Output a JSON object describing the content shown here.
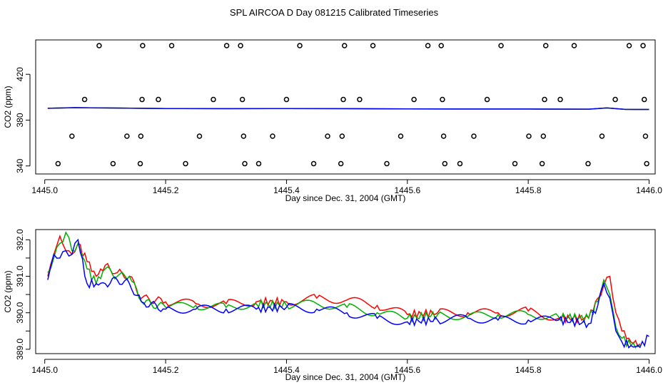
{
  "title": "SPL AIRCOA D  Day 081215  Calibrated Timeseries",
  "chart_data": [
    {
      "type": "scatter+line",
      "title": "",
      "xlabel": "Day since Dec. 31, 2004 (GMT)",
      "ylabel": "CO2 (ppm)",
      "xlim": [
        1444.985,
        1446.01
      ],
      "ylim": [
        333,
        450
      ],
      "xticks": [
        1445.0,
        1445.2,
        1445.4,
        1445.6,
        1445.8,
        1446.0
      ],
      "xtick_labels": [
        "1445.0",
        "1445.2",
        "1445.4",
        "1445.6",
        "1445.8",
        "1446.0"
      ],
      "yticks": [
        340,
        380,
        420
      ],
      "ytick_labels": [
        "340",
        "380",
        "420"
      ],
      "calibration_points": [
        {
          "x": 1445.022,
          "y": 342
        },
        {
          "x": 1445.045,
          "y": 366
        },
        {
          "x": 1445.066,
          "y": 398
        },
        {
          "x": 1445.09,
          "y": 445
        },
        {
          "x": 1445.113,
          "y": 342
        },
        {
          "x": 1445.136,
          "y": 366
        },
        {
          "x": 1445.158,
          "y": 342
        },
        {
          "x": 1445.159,
          "y": 366
        },
        {
          "x": 1445.161,
          "y": 398
        },
        {
          "x": 1445.162,
          "y": 445
        },
        {
          "x": 1445.188,
          "y": 398
        },
        {
          "x": 1445.21,
          "y": 445
        },
        {
          "x": 1445.233,
          "y": 342
        },
        {
          "x": 1445.256,
          "y": 366
        },
        {
          "x": 1445.279,
          "y": 398
        },
        {
          "x": 1445.301,
          "y": 445
        },
        {
          "x": 1445.324,
          "y": 445
        },
        {
          "x": 1445.327,
          "y": 398
        },
        {
          "x": 1445.329,
          "y": 366
        },
        {
          "x": 1445.331,
          "y": 342
        },
        {
          "x": 1445.354,
          "y": 342
        },
        {
          "x": 1445.377,
          "y": 366
        },
        {
          "x": 1445.4,
          "y": 398
        },
        {
          "x": 1445.422,
          "y": 445
        },
        {
          "x": 1445.445,
          "y": 342
        },
        {
          "x": 1445.468,
          "y": 366
        },
        {
          "x": 1445.49,
          "y": 342
        },
        {
          "x": 1445.492,
          "y": 366
        },
        {
          "x": 1445.494,
          "y": 398
        },
        {
          "x": 1445.496,
          "y": 445
        },
        {
          "x": 1445.521,
          "y": 398
        },
        {
          "x": 1445.543,
          "y": 445
        },
        {
          "x": 1445.566,
          "y": 342
        },
        {
          "x": 1445.589,
          "y": 366
        },
        {
          "x": 1445.611,
          "y": 398
        },
        {
          "x": 1445.634,
          "y": 445
        },
        {
          "x": 1445.656,
          "y": 445
        },
        {
          "x": 1445.658,
          "y": 398
        },
        {
          "x": 1445.66,
          "y": 366
        },
        {
          "x": 1445.662,
          "y": 342
        },
        {
          "x": 1445.687,
          "y": 342
        },
        {
          "x": 1445.71,
          "y": 366
        },
        {
          "x": 1445.732,
          "y": 398
        },
        {
          "x": 1445.755,
          "y": 445
        },
        {
          "x": 1445.778,
          "y": 342
        },
        {
          "x": 1445.801,
          "y": 366
        },
        {
          "x": 1445.823,
          "y": 342
        },
        {
          "x": 1445.825,
          "y": 366
        },
        {
          "x": 1445.827,
          "y": 398
        },
        {
          "x": 1445.829,
          "y": 445
        },
        {
          "x": 1445.853,
          "y": 398
        },
        {
          "x": 1445.876,
          "y": 445
        },
        {
          "x": 1445.899,
          "y": 342
        },
        {
          "x": 1445.922,
          "y": 366
        },
        {
          "x": 1445.944,
          "y": 398
        },
        {
          "x": 1445.967,
          "y": 445
        },
        {
          "x": 1445.99,
          "y": 445
        },
        {
          "x": 1445.992,
          "y": 398
        },
        {
          "x": 1445.994,
          "y": 366
        },
        {
          "x": 1445.996,
          "y": 342
        }
      ],
      "series": [
        {
          "name": "red",
          "color": "#ff0000",
          "x": [
            1445.005,
            1445.05,
            1445.1,
            1445.2,
            1445.3,
            1445.4,
            1445.5,
            1445.6,
            1445.7,
            1445.8,
            1445.9,
            1445.93,
            1445.96,
            1446.0
          ],
          "y": [
            390.3,
            390.9,
            390.6,
            390.1,
            390.0,
            390.1,
            390.0,
            389.8,
            389.7,
            389.7,
            389.6,
            390.6,
            389.4,
            389.3
          ]
        },
        {
          "name": "green",
          "color": "#00b000",
          "x": [
            1445.005,
            1445.05,
            1445.1,
            1445.2,
            1445.3,
            1445.4,
            1445.5,
            1445.6,
            1445.7,
            1445.8,
            1445.9,
            1445.93,
            1445.96,
            1446.0
          ],
          "y": [
            390.3,
            390.9,
            390.6,
            390.1,
            390.0,
            390.1,
            390.0,
            389.8,
            389.7,
            389.7,
            389.6,
            390.6,
            389.4,
            389.3
          ]
        },
        {
          "name": "blue",
          "color": "#0000ff",
          "x": [
            1445.005,
            1445.05,
            1445.1,
            1445.2,
            1445.3,
            1445.4,
            1445.5,
            1445.6,
            1445.7,
            1445.8,
            1445.9,
            1445.93,
            1445.96,
            1446.0
          ],
          "y": [
            390.3,
            390.9,
            390.6,
            390.1,
            390.0,
            390.1,
            390.0,
            389.8,
            389.7,
            389.7,
            389.6,
            390.6,
            389.4,
            389.3
          ]
        }
      ]
    },
    {
      "type": "line",
      "title": "",
      "xlabel": "Day since Dec. 31, 2004 (GMT)",
      "ylabel": "CO2 (ppm)",
      "xlim": [
        1444.985,
        1446.01
      ],
      "ylim": [
        388.88,
        392.28
      ],
      "xticks": [
        1445.0,
        1445.2,
        1445.4,
        1445.6,
        1445.8,
        1446.0
      ],
      "xtick_labels": [
        "1445.0",
        "1445.2",
        "1445.4",
        "1445.6",
        "1445.8",
        "1446.0"
      ],
      "yticks": [
        389.0,
        389.5,
        390.0,
        390.5,
        391.0,
        391.5,
        392.0
      ],
      "ytick_labels": [
        "389.0",
        "",
        "390.0",
        "",
        "391.0",
        "",
        "392.0"
      ],
      "series": [
        {
          "name": "red",
          "color": "#ff0000",
          "x": [
            1445.005,
            1445.015,
            1445.025,
            1445.035,
            1445.045,
            1445.055,
            1445.07,
            1445.085,
            1445.1,
            1445.12,
            1445.14,
            1445.16,
            1445.2,
            1445.25,
            1445.3,
            1445.35,
            1445.4,
            1445.45,
            1445.5,
            1445.55,
            1445.6,
            1445.65,
            1445.7,
            1445.75,
            1445.8,
            1445.85,
            1445.9,
            1445.915,
            1445.925,
            1445.935,
            1445.945,
            1445.955,
            1445.97,
            1445.985
          ],
          "y": [
            391.0,
            391.6,
            392.1,
            391.7,
            391.6,
            391.9,
            391.4,
            391.0,
            391.3,
            391.1,
            391.0,
            390.4,
            390.3,
            390.25,
            390.25,
            390.3,
            390.3,
            390.4,
            390.35,
            390.2,
            389.95,
            390.0,
            390.0,
            390.0,
            390.05,
            389.85,
            389.85,
            390.4,
            390.75,
            391.0,
            390.0,
            389.5,
            389.2,
            389.15
          ]
        },
        {
          "name": "green",
          "color": "#00b000",
          "x": [
            1445.005,
            1445.015,
            1445.025,
            1445.035,
            1445.045,
            1445.055,
            1445.07,
            1445.085,
            1445.1,
            1445.12,
            1445.14,
            1445.16,
            1445.2,
            1445.25,
            1445.3,
            1445.35,
            1445.4,
            1445.45,
            1445.5,
            1445.55,
            1445.6,
            1445.65,
            1445.7,
            1445.75,
            1445.8,
            1445.85,
            1445.9,
            1445.915,
            1445.925,
            1445.935,
            1445.945,
            1445.955,
            1445.97,
            1445.985
          ],
          "y": [
            391.1,
            391.5,
            391.9,
            392.2,
            391.7,
            391.9,
            391.2,
            390.8,
            391.2,
            391.0,
            391.0,
            390.3,
            390.15,
            390.2,
            390.15,
            390.25,
            390.2,
            390.25,
            390.15,
            390.0,
            389.85,
            389.95,
            389.9,
            389.95,
            389.95,
            389.9,
            389.85,
            390.3,
            390.9,
            390.5,
            389.6,
            389.3,
            389.1,
            389.1
          ]
        },
        {
          "name": "blue",
          "color": "#0000ff",
          "x": [
            1445.005,
            1445.015,
            1445.025,
            1445.035,
            1445.045,
            1445.055,
            1445.07,
            1445.085,
            1445.1,
            1445.12,
            1445.14,
            1445.16,
            1445.2,
            1445.25,
            1445.3,
            1445.35,
            1445.4,
            1445.45,
            1445.5,
            1445.55,
            1445.6,
            1445.65,
            1445.7,
            1445.75,
            1445.8,
            1445.85,
            1445.9,
            1445.915,
            1445.925,
            1445.935,
            1445.945,
            1445.955,
            1445.97,
            1445.985,
            1446.0
          ],
          "y": [
            390.9,
            391.6,
            391.5,
            391.7,
            391.6,
            392.0,
            390.8,
            390.8,
            390.8,
            390.9,
            390.8,
            390.3,
            390.1,
            390.1,
            390.1,
            390.1,
            390.15,
            390.1,
            390.0,
            389.85,
            389.75,
            389.8,
            389.85,
            389.8,
            389.8,
            389.8,
            389.7,
            390.2,
            390.8,
            390.4,
            389.5,
            389.2,
            389.1,
            389.05,
            389.35
          ]
        }
      ]
    }
  ]
}
